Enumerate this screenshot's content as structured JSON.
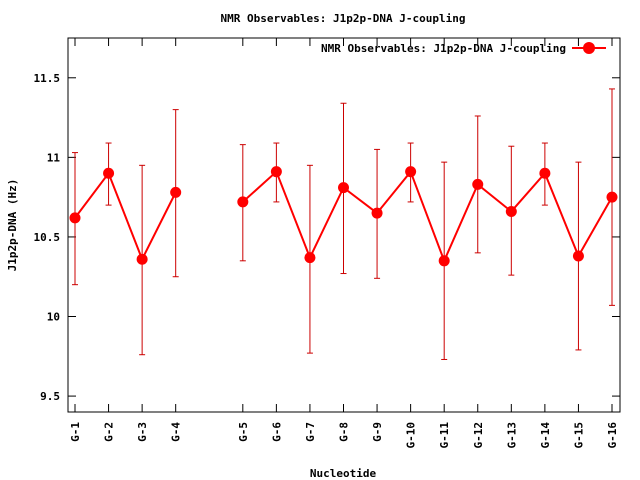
{
  "chart_data": {
    "type": "line",
    "title": "NMR Observables: J1p2p-DNA J-coupling",
    "xlabel": "Nucleotide",
    "ylabel": "J1p2p-DNA (Hz)",
    "ylim": [
      9.4,
      11.75
    ],
    "yticks": [
      9.5,
      10,
      10.5,
      11,
      11.5
    ],
    "legend_position": "top-right",
    "grid": false,
    "series_color": "#ff0000",
    "errorbar_color": "#cc0000",
    "series": [
      {
        "name": "NMR Observables: J1p2p-DNA J-coupling",
        "points": [
          {
            "label": "G-1",
            "x": 1,
            "y": 10.62,
            "err_low": 10.2,
            "err_high": 11.03
          },
          {
            "label": "G-2",
            "x": 2,
            "y": 10.9,
            "err_low": 10.7,
            "err_high": 11.09
          },
          {
            "label": "G-3",
            "x": 3,
            "y": 10.36,
            "err_low": 9.76,
            "err_high": 10.95
          },
          {
            "label": "G-4",
            "x": 4,
            "y": 10.78,
            "err_low": 10.25,
            "err_high": 11.3
          },
          {
            "label": "G-5",
            "x": 6,
            "y": 10.72,
            "err_low": 10.35,
            "err_high": 11.08
          },
          {
            "label": "G-6",
            "x": 7,
            "y": 10.91,
            "err_low": 10.72,
            "err_high": 11.09
          },
          {
            "label": "G-7",
            "x": 8,
            "y": 10.37,
            "err_low": 9.77,
            "err_high": 10.95
          },
          {
            "label": "G-8",
            "x": 9,
            "y": 10.81,
            "err_low": 10.27,
            "err_high": 11.34
          },
          {
            "label": "G-9",
            "x": 10,
            "y": 10.65,
            "err_low": 10.24,
            "err_high": 11.05
          },
          {
            "label": "G-10",
            "x": 11,
            "y": 10.91,
            "err_low": 10.72,
            "err_high": 11.09
          },
          {
            "label": "G-11",
            "x": 12,
            "y": 10.35,
            "err_low": 9.73,
            "err_high": 10.97
          },
          {
            "label": "G-12",
            "x": 13,
            "y": 10.83,
            "err_low": 10.4,
            "err_high": 11.26
          },
          {
            "label": "G-13",
            "x": 14,
            "y": 10.66,
            "err_low": 10.26,
            "err_high": 11.07
          },
          {
            "label": "G-14",
            "x": 15,
            "y": 10.9,
            "err_low": 10.7,
            "err_high": 11.09
          },
          {
            "label": "G-15",
            "x": 16,
            "y": 10.38,
            "err_low": 9.79,
            "err_high": 10.97
          },
          {
            "label": "G-16",
            "x": 17,
            "y": 10.75,
            "err_low": 10.07,
            "err_high": 11.43
          }
        ]
      }
    ]
  }
}
